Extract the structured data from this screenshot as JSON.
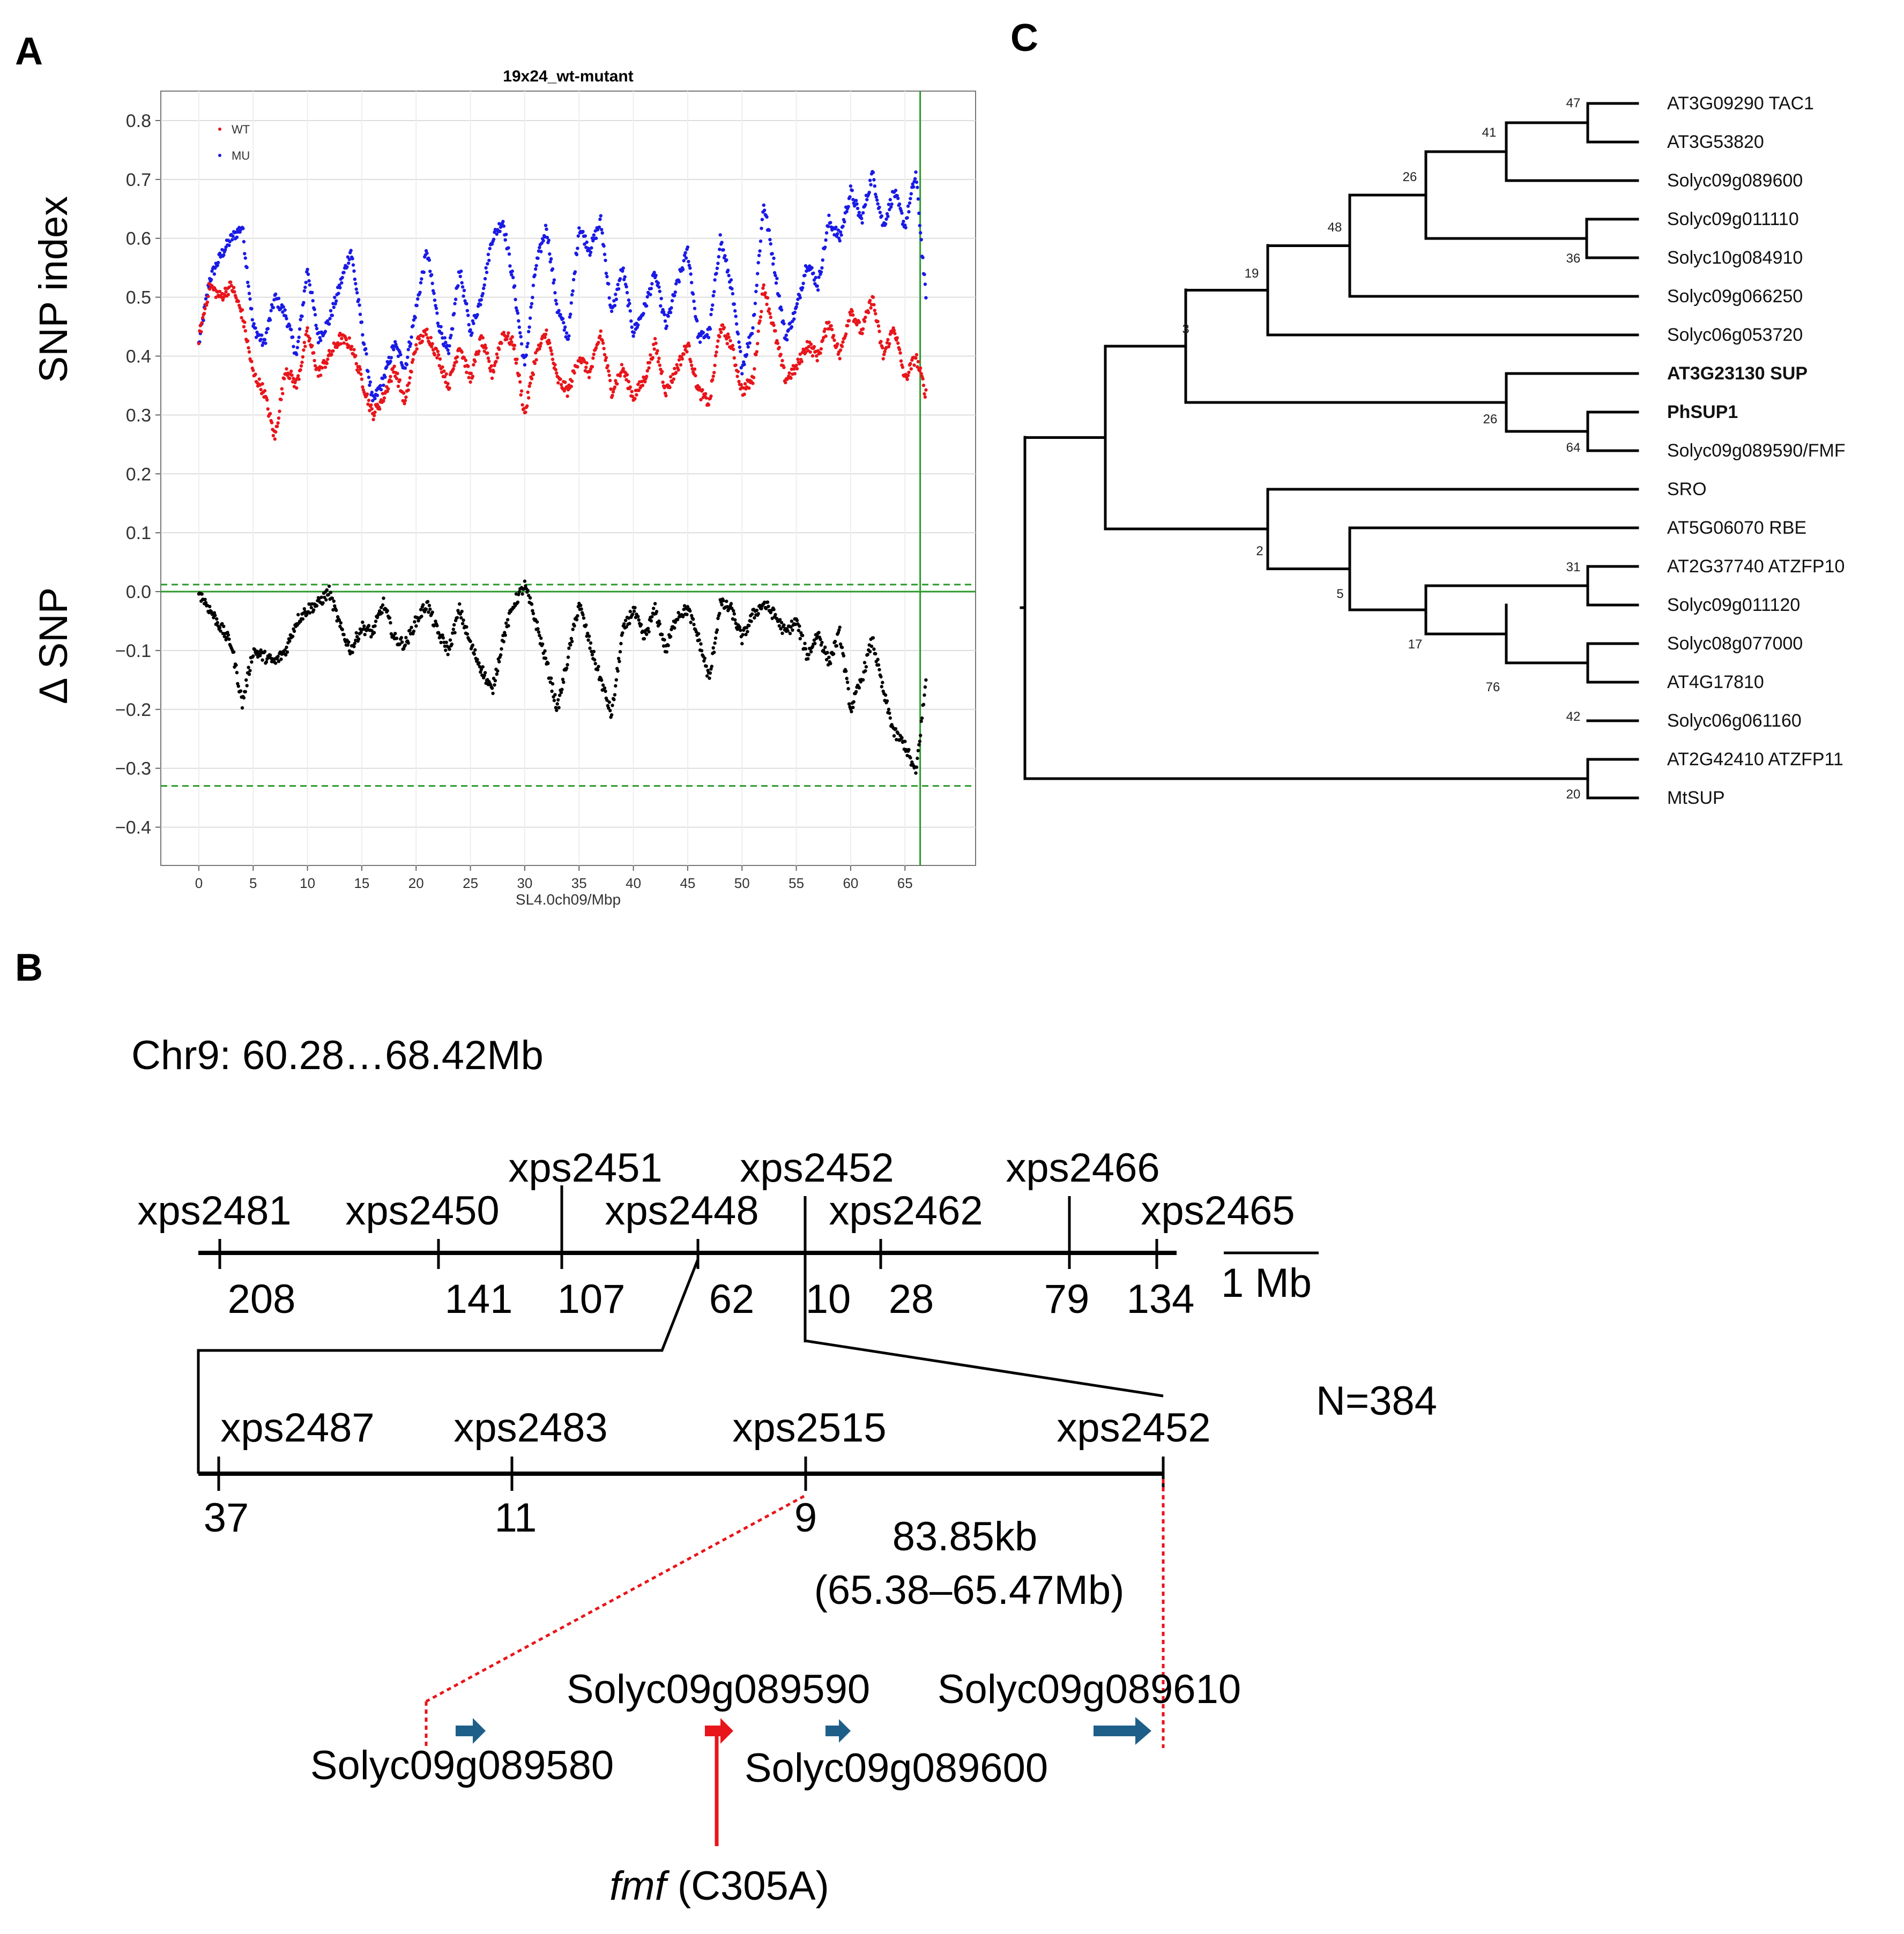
{
  "panels": {
    "a": "A",
    "b": "B",
    "c": "C"
  },
  "panelA": {
    "chart_data": {
      "type": "scatter",
      "title": "19x24_wt-mutant",
      "xlabel": "SL4.0ch09/Mbp",
      "ylabel_top": "SNP index",
      "ylabel_bottom": "Δ SNP",
      "xlim": [
        -3.5,
        71.5
      ],
      "ylim": [
        -0.465,
        0.85
      ],
      "xticks": [
        "0",
        "5",
        "10",
        "15",
        "20",
        "25",
        "30",
        "35",
        "40",
        "45",
        "50",
        "55",
        "60",
        "65"
      ],
      "yticks": [
        "0.8",
        "0.7",
        "0.6",
        "0.5",
        "0.4",
        "0.3",
        "0.2",
        "0.1",
        "0.0",
        "−0.1",
        "−0.2",
        "−0.3",
        "−0.4"
      ],
      "legend": [
        {
          "name": "WT",
          "color": "#e8151b"
        },
        {
          "name": "MU",
          "color": "#1a1ae6"
        }
      ],
      "threshold_upper": 0.012,
      "threshold_lower": -0.33,
      "zero_line": 0.0,
      "marker_line_x": 66.4,
      "series": [
        {
          "name": "MU",
          "color": "#1a1ae6",
          "x": [
            0,
            1,
            2,
            3,
            4,
            5,
            6,
            7,
            8,
            9,
            10,
            11,
            12,
            13,
            14,
            15,
            16,
            17,
            18,
            19,
            20,
            21,
            22,
            23,
            24,
            25,
            26,
            27,
            28,
            29,
            30,
            31,
            32,
            33,
            34,
            35,
            36,
            37,
            38,
            39,
            40,
            41,
            42,
            43,
            44,
            45,
            46,
            47,
            48,
            49,
            50,
            51,
            52,
            53,
            54,
            55,
            56,
            57,
            58,
            59,
            60,
            61,
            62,
            63,
            64,
            65,
            66,
            67
          ],
          "y": [
            0.42,
            0.53,
            0.57,
            0.6,
            0.62,
            0.45,
            0.42,
            0.5,
            0.47,
            0.4,
            0.55,
            0.43,
            0.46,
            0.52,
            0.58,
            0.45,
            0.32,
            0.36,
            0.42,
            0.38,
            0.48,
            0.58,
            0.46,
            0.4,
            0.55,
            0.44,
            0.5,
            0.6,
            0.63,
            0.52,
            0.38,
            0.55,
            0.62,
            0.48,
            0.43,
            0.62,
            0.58,
            0.63,
            0.47,
            0.55,
            0.44,
            0.48,
            0.54,
            0.45,
            0.52,
            0.58,
            0.43,
            0.44,
            0.6,
            0.52,
            0.38,
            0.45,
            0.66,
            0.55,
            0.43,
            0.48,
            0.56,
            0.52,
            0.63,
            0.6,
            0.68,
            0.63,
            0.71,
            0.62,
            0.68,
            0.62,
            0.71,
            0.48
          ]
        },
        {
          "name": "WT",
          "color": "#e8151b",
          "x": [
            0,
            1,
            2,
            3,
            4,
            5,
            6,
            7,
            8,
            9,
            10,
            11,
            12,
            13,
            14,
            15,
            16,
            17,
            18,
            19,
            20,
            21,
            22,
            23,
            24,
            25,
            26,
            27,
            28,
            29,
            30,
            31,
            32,
            33,
            34,
            35,
            36,
            37,
            38,
            39,
            40,
            41,
            42,
            43,
            44,
            45,
            46,
            47,
            48,
            49,
            50,
            51,
            52,
            53,
            54,
            55,
            56,
            57,
            58,
            59,
            60,
            61,
            62,
            63,
            64,
            65,
            66,
            67
          ],
          "y": [
            0.43,
            0.52,
            0.5,
            0.52,
            0.47,
            0.37,
            0.34,
            0.26,
            0.38,
            0.35,
            0.44,
            0.37,
            0.4,
            0.43,
            0.42,
            0.36,
            0.3,
            0.33,
            0.38,
            0.32,
            0.42,
            0.44,
            0.4,
            0.35,
            0.42,
            0.36,
            0.43,
            0.37,
            0.44,
            0.42,
            0.3,
            0.4,
            0.44,
            0.36,
            0.34,
            0.4,
            0.37,
            0.44,
            0.34,
            0.38,
            0.33,
            0.36,
            0.42,
            0.34,
            0.38,
            0.42,
            0.34,
            0.32,
            0.45,
            0.42,
            0.34,
            0.36,
            0.52,
            0.44,
            0.36,
            0.38,
            0.42,
            0.4,
            0.46,
            0.4,
            0.48,
            0.44,
            0.5,
            0.4,
            0.45,
            0.36,
            0.4,
            0.33
          ]
        },
        {
          "name": "ΔSNP",
          "color": "#000000",
          "x": [
            0,
            1,
            2,
            3,
            4,
            5,
            6,
            7,
            8,
            9,
            10,
            11,
            12,
            13,
            14,
            15,
            16,
            17,
            18,
            19,
            20,
            21,
            22,
            23,
            24,
            25,
            26,
            27,
            28,
            29,
            30,
            31,
            32,
            33,
            34,
            35,
            36,
            37,
            38,
            39,
            40,
            41,
            42,
            43,
            44,
            45,
            46,
            47,
            48,
            49,
            50,
            51,
            52,
            53,
            54,
            55,
            56,
            57,
            58,
            59,
            60,
            61,
            62,
            63,
            64,
            65,
            66,
            67
          ],
          "y": [
            0.0,
            -0.03,
            -0.06,
            -0.09,
            -0.19,
            -0.1,
            -0.11,
            -0.12,
            -0.1,
            -0.05,
            -0.03,
            -0.02,
            0.0,
            -0.06,
            -0.1,
            -0.06,
            -0.07,
            -0.02,
            -0.08,
            -0.09,
            -0.05,
            -0.02,
            -0.07,
            -0.1,
            -0.03,
            -0.09,
            -0.13,
            -0.17,
            -0.08,
            -0.02,
            0.01,
            -0.05,
            -0.12,
            -0.2,
            -0.11,
            -0.02,
            -0.09,
            -0.15,
            -0.21,
            -0.07,
            -0.03,
            -0.08,
            -0.03,
            -0.1,
            -0.04,
            -0.03,
            -0.08,
            -0.15,
            -0.02,
            -0.03,
            -0.08,
            -0.04,
            -0.02,
            -0.04,
            -0.07,
            -0.05,
            -0.11,
            -0.07,
            -0.12,
            -0.07,
            -0.2,
            -0.15,
            -0.08,
            -0.17,
            -0.24,
            -0.26,
            -0.31,
            -0.14
          ]
        }
      ]
    }
  },
  "panelB": {
    "header": "Chr9: 60.28…68.42Mb",
    "top_markers": [
      {
        "name": "xps2481",
        "count": "208"
      },
      {
        "name": "xps2450",
        "count": "141"
      },
      {
        "name": "xps2451",
        "count": "107"
      },
      {
        "name": "xps2448",
        "count": "62"
      },
      {
        "name": "xps2452",
        "count": "10"
      },
      {
        "name": "xps2462",
        "count": "28"
      },
      {
        "name": "xps2466",
        "count": "79"
      },
      {
        "name": "xps2465",
        "count": "134"
      }
    ],
    "scale_label": "1 Mb",
    "fine_markers": [
      {
        "name": "xps2487",
        "count": "37"
      },
      {
        "name": "xps2483",
        "count": "11"
      },
      {
        "name": "xps2515",
        "count": "9"
      },
      {
        "name": "xps2452",
        "count": ""
      }
    ],
    "n_label": "N=384",
    "interval_size": "83.85kb",
    "interval_range": "(65.38–65.47Mb)",
    "genes": [
      {
        "name": "Solyc09g089580",
        "color": "#1e5f8a"
      },
      {
        "name": "Solyc09g089590",
        "color": "#e8151b"
      },
      {
        "name": "Solyc09g089600",
        "color": "#1e5f8a"
      },
      {
        "name": "Solyc09g089610",
        "color": "#1e5f8a"
      }
    ],
    "mutation_gene": "fmf",
    "mutation_change": " (C305A)"
  },
  "panelC": {
    "leaves": [
      {
        "label": "AT3G09290  TAC1",
        "bold": false,
        "color": "#111111"
      },
      {
        "label": "AT3G53820",
        "bold": false,
        "color": "#111111"
      },
      {
        "label": "Solyc09g089600",
        "bold": false,
        "color": "#111111"
      },
      {
        "label": "Solyc09g011110",
        "bold": false,
        "color": "#111111"
      },
      {
        "label": "Solyc10g084910",
        "bold": false,
        "color": "#111111"
      },
      {
        "label": "Solyc09g066250",
        "bold": false,
        "color": "#111111"
      },
      {
        "label": "Solyc06g053720",
        "bold": false,
        "color": "#111111"
      },
      {
        "label": "AT3G23130  SUP",
        "bold": true,
        "color": "#111111"
      },
      {
        "label": "PhSUP1",
        "bold": true,
        "color": "#111111"
      },
      {
        "label": "Solyc09g089590/FMF",
        "bold": false,
        "color": "#e8151b"
      },
      {
        "label": "SRO",
        "bold": false,
        "color": "#111111"
      },
      {
        "label": "AT5G06070  RBE",
        "bold": false,
        "color": "#111111"
      },
      {
        "label": "AT2G37740  ATZFP10",
        "bold": false,
        "color": "#111111"
      },
      {
        "label": "Solyc09g011120",
        "bold": false,
        "color": "#111111"
      },
      {
        "label": "Solyc08g077000",
        "bold": false,
        "color": "#111111"
      },
      {
        "label": "AT4G17810",
        "bold": false,
        "color": "#111111"
      },
      {
        "label": "Solyc06g061160",
        "bold": false,
        "color": "#111111"
      },
      {
        "label": "AT2G42410  ATZFP11",
        "bold": false,
        "color": "#111111"
      },
      {
        "label": "MtSUP",
        "bold": false,
        "color": "#111111"
      }
    ],
    "bootstrap": [
      "47",
      "41",
      "26",
      "36",
      "48",
      "19",
      "3",
      "26",
      "64",
      "2",
      "5",
      "31",
      "17",
      "76",
      "42",
      "20"
    ]
  }
}
